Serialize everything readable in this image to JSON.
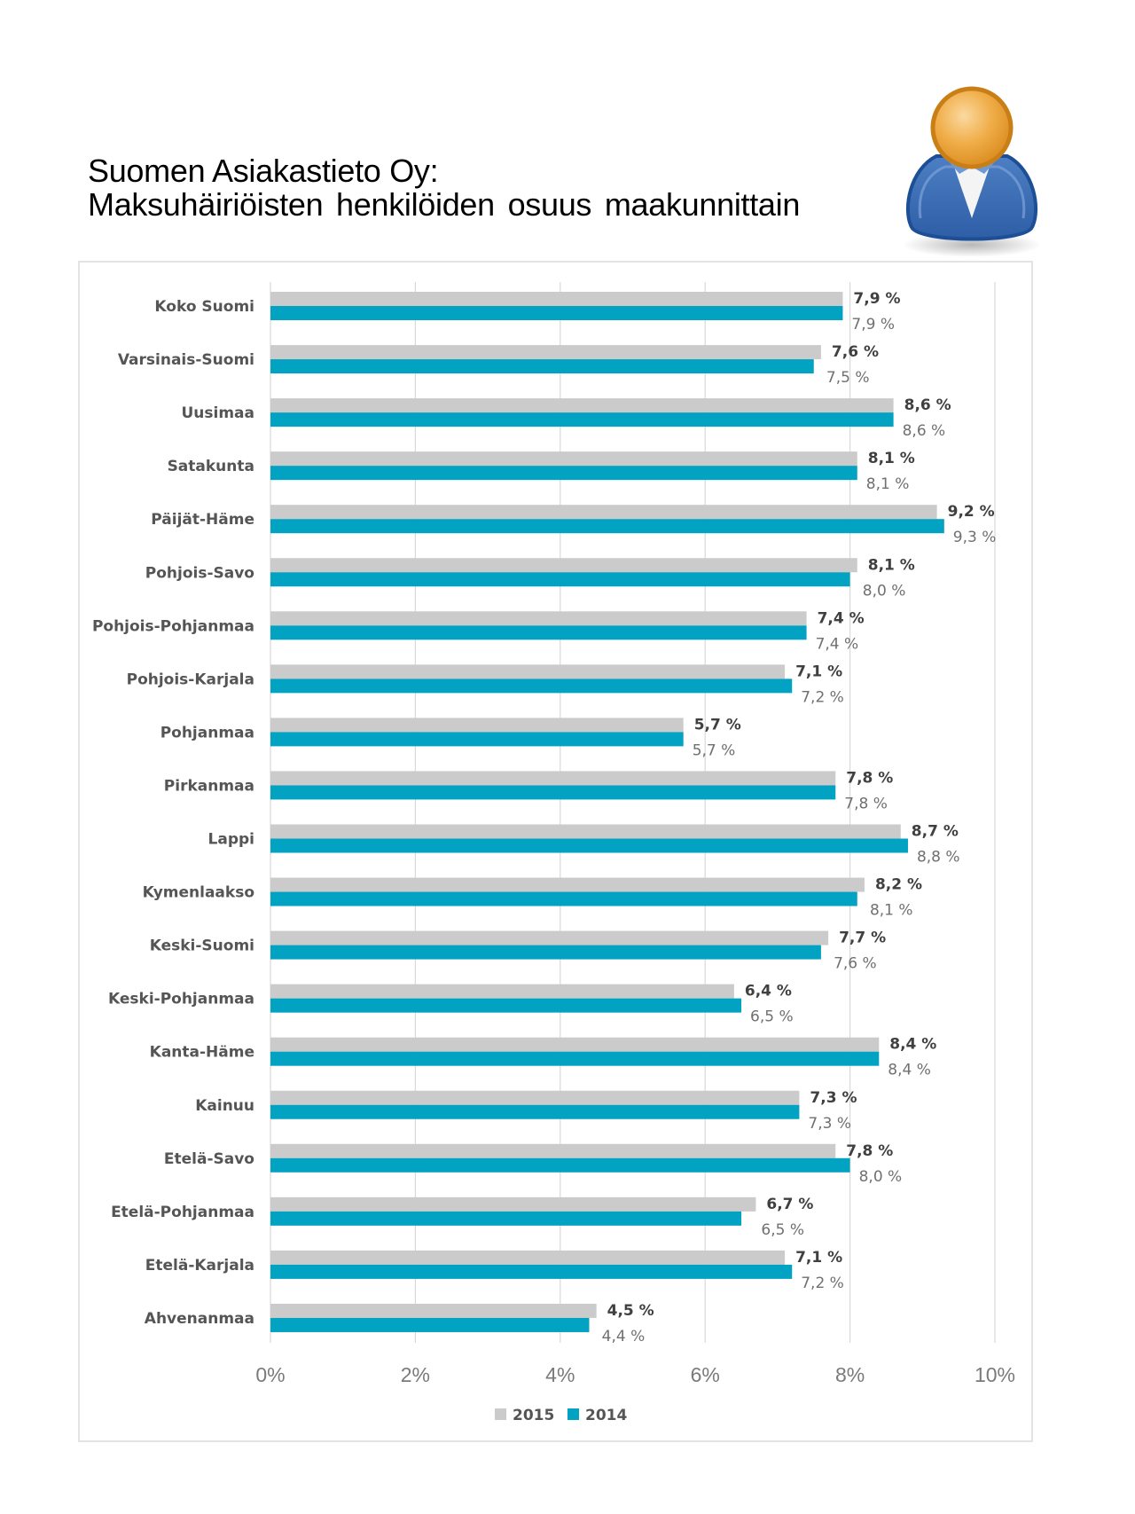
{
  "title": {
    "line1": "Suomen Asiakastieto Oy:",
    "line2": "Maksuhäiriöisten henkilöiden osuus maakunnittain"
  },
  "icons": {
    "avatar": "user-avatar-icon"
  },
  "colors": {
    "series_2015": "#cbcbcb",
    "series_2014": "#02a2c2",
    "grid": "#d9d9d9"
  },
  "chart_data": {
    "type": "bar",
    "orientation": "horizontal",
    "title": "Maksuhäiriöisten henkilöiden osuus maakunnittain",
    "xlabel": "",
    "ylabel": "",
    "xlim": [
      0,
      10
    ],
    "x_ticks": [
      "0%",
      "2%",
      "4%",
      "6%",
      "8%",
      "10%"
    ],
    "grid": true,
    "legend_position": "bottom",
    "categories": [
      "Koko Suomi",
      "Varsinais-Suomi",
      "Uusimaa",
      "Satakunta",
      "Päijät-Häme",
      "Pohjois-Savo",
      "Pohjois-Pohjanmaa",
      "Pohjois-Karjala",
      "Pohjanmaa",
      "Pirkanmaa",
      "Lappi",
      "Kymenlaakso",
      "Keski-Suomi",
      "Keski-Pohjanmaa",
      "Kanta-Häme",
      "Kainuu",
      "Etelä-Savo",
      "Etelä-Pohjanmaa",
      "Etelä-Karjala",
      "Ahvenanmaa"
    ],
    "series": [
      {
        "name": "2015",
        "values": [
          7.9,
          7.6,
          8.6,
          8.1,
          9.2,
          8.1,
          7.4,
          7.1,
          5.7,
          7.8,
          8.7,
          8.2,
          7.7,
          6.4,
          8.4,
          7.3,
          7.8,
          6.7,
          7.1,
          4.5
        ],
        "labels": [
          "7,9 %",
          "7,6 %",
          "8,6 %",
          "8,1 %",
          "9,2 %",
          "8,1 %",
          "7,4 %",
          "7,1 %",
          "5,7 %",
          "7,8 %",
          "8,7 %",
          "8,2 %",
          "7,7 %",
          "6,4 %",
          "8,4 %",
          "7,3 %",
          "7,8 %",
          "6,7 %",
          "7,1 %",
          "4,5 %"
        ]
      },
      {
        "name": "2014",
        "values": [
          7.9,
          7.5,
          8.6,
          8.1,
          9.3,
          8.0,
          7.4,
          7.2,
          5.7,
          7.8,
          8.8,
          8.1,
          7.6,
          6.5,
          8.4,
          7.3,
          8.0,
          6.5,
          7.2,
          4.4
        ],
        "labels": [
          "7,9 %",
          "7,5 %",
          "8,6 %",
          "8,1 %",
          "9,3 %",
          "8,0 %",
          "7,4 %",
          "7,2 %",
          "5,7 %",
          "7,8 %",
          "8,8 %",
          "8,1 %",
          "7,6 %",
          "6,5 %",
          "8,4 %",
          "7,3 %",
          "8,0 %",
          "6,5 %",
          "7,2 %",
          "4,4 %"
        ]
      }
    ]
  }
}
